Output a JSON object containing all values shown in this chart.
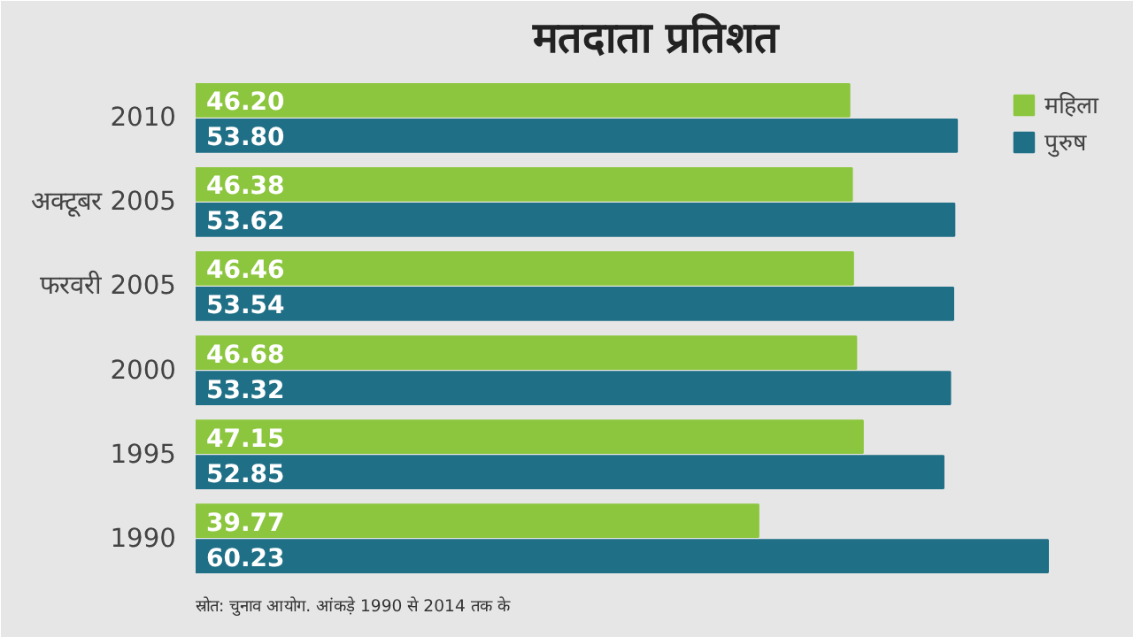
{
  "chart_data": {
    "type": "bar",
    "orientation": "horizontal",
    "title": "मतदाता प्रतिशत",
    "categories": [
      "2010",
      "अक्टूबर 2005",
      "फरवरी 2005",
      "2000",
      "1995",
      "1990"
    ],
    "series": [
      {
        "name": "महिला",
        "color": "#8cc63e",
        "values": [
          46.2,
          46.38,
          46.46,
          46.68,
          47.15,
          39.77
        ],
        "value_labels": [
          "46.20",
          "46.38",
          "46.46",
          "46.68",
          "47.15",
          "39.77"
        ]
      },
      {
        "name": "पुरुष",
        "color": "#1f6f86",
        "values": [
          53.8,
          53.62,
          53.54,
          53.32,
          52.85,
          60.23
        ],
        "value_labels": [
          "53.80",
          "53.62",
          "53.54",
          "53.32",
          "52.85",
          "60.23"
        ]
      }
    ],
    "legend": "top right",
    "annotations": [
      "स्रोत: चुनाव आयोग. आंकड़े 1990 से 2014 तक के"
    ]
  }
}
